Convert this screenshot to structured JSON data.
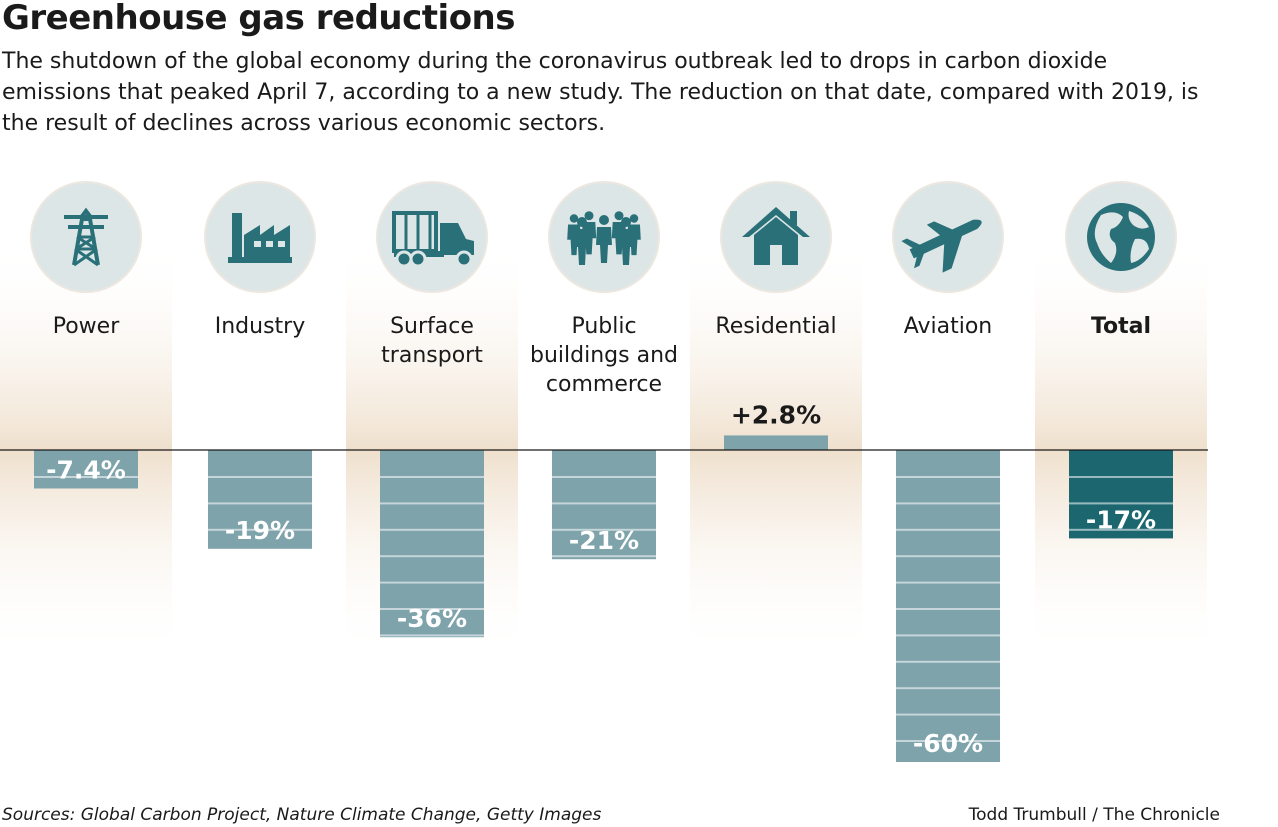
{
  "header": {
    "title": "Greenhouse gas reductions",
    "subtitle": "The shutdown of the global economy during the coronavirus outbreak led to drops in carbon dioxide emissions that peaked April 7, according to a new study. The reduction on that date, compared with 2019, is the result of declines across various economic sectors."
  },
  "footer": {
    "sources": "Sources: Global Carbon Project, Nature Climate Change, Getty Images",
    "credit": "Todd Trumbull / The Chronicle"
  },
  "colors": {
    "bar": "#7ea3ab",
    "bar_total": "#1c6670",
    "icon": "#2a7079",
    "icon_bg": "#dde6e6",
    "column_shade": "#efe0cd"
  },
  "chart_data": {
    "type": "bar",
    "title": "Greenhouse gas reductions",
    "xlabel": "",
    "ylabel": "",
    "unit": "%",
    "ylim": [
      -60,
      2.8
    ],
    "categories": [
      "Power",
      "Industry",
      "Surface transport",
      "Public buildings and commerce",
      "Residential",
      "Aviation",
      "Total"
    ],
    "category_lines": [
      [
        "Power"
      ],
      [
        "Industry"
      ],
      [
        "Surface",
        "transport"
      ],
      [
        "Public",
        "buildings and",
        "commerce"
      ],
      [
        "Residential"
      ],
      [
        "Aviation"
      ],
      [
        "Total"
      ]
    ],
    "icons": [
      "power-tower-icon",
      "factory-icon",
      "truck-icon",
      "people-group-icon",
      "house-icon",
      "airplane-icon",
      "globe-icon"
    ],
    "values": [
      -7.4,
      -19,
      -36,
      -21,
      2.8,
      -60,
      -17
    ],
    "value_labels": [
      "-7.4%",
      "-19%",
      "-36%",
      "-21%",
      "+2.8%",
      "-60%",
      "-17%"
    ],
    "highlight": "Total"
  }
}
